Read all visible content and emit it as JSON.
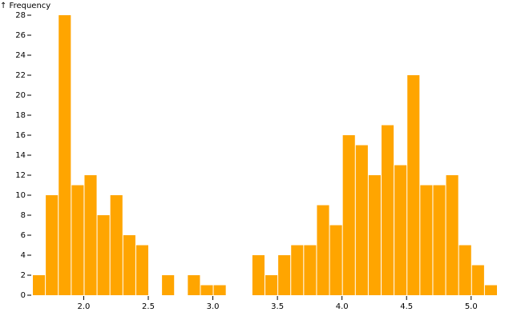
{
  "chart_data": {
    "type": "histogram",
    "y_label": "↑ Frequency",
    "bins": [
      1.6,
      1.7,
      1.8,
      1.9,
      2.0,
      2.1,
      2.2,
      2.3,
      2.4,
      2.5,
      2.6,
      2.7,
      2.8,
      2.9,
      3.0,
      3.1,
      3.2,
      3.3,
      3.4,
      3.5,
      3.6,
      3.7,
      3.8,
      3.9,
      4.0,
      4.1,
      4.2,
      4.3,
      4.4,
      4.5,
      4.6,
      4.7,
      4.8,
      4.9,
      5.0,
      5.1,
      5.2
    ],
    "counts": [
      2,
      10,
      28,
      11,
      12,
      8,
      10,
      6,
      5,
      0,
      2,
      0,
      2,
      1,
      1,
      0,
      0,
      4,
      2,
      4,
      5,
      5,
      9,
      7,
      16,
      15,
      12,
      17,
      13,
      22,
      11,
      11,
      12,
      5,
      3,
      1
    ],
    "color": "#ffa500",
    "xlim": [
      1.6,
      5.2
    ],
    "xticks": [
      {
        "value": 2,
        "label": "2.0"
      },
      2.5,
      {
        "value": 3,
        "label": "3.0"
      },
      3.5,
      {
        "value": 4,
        "label": "4.0"
      },
      4.5,
      {
        "value": 5,
        "label": "5.0"
      }
    ],
    "ylim": [
      0,
      28
    ],
    "yticks": [
      0,
      2,
      4,
      6,
      8,
      10,
      12,
      14,
      16,
      18,
      20,
      22,
      24,
      26,
      28
    ]
  }
}
